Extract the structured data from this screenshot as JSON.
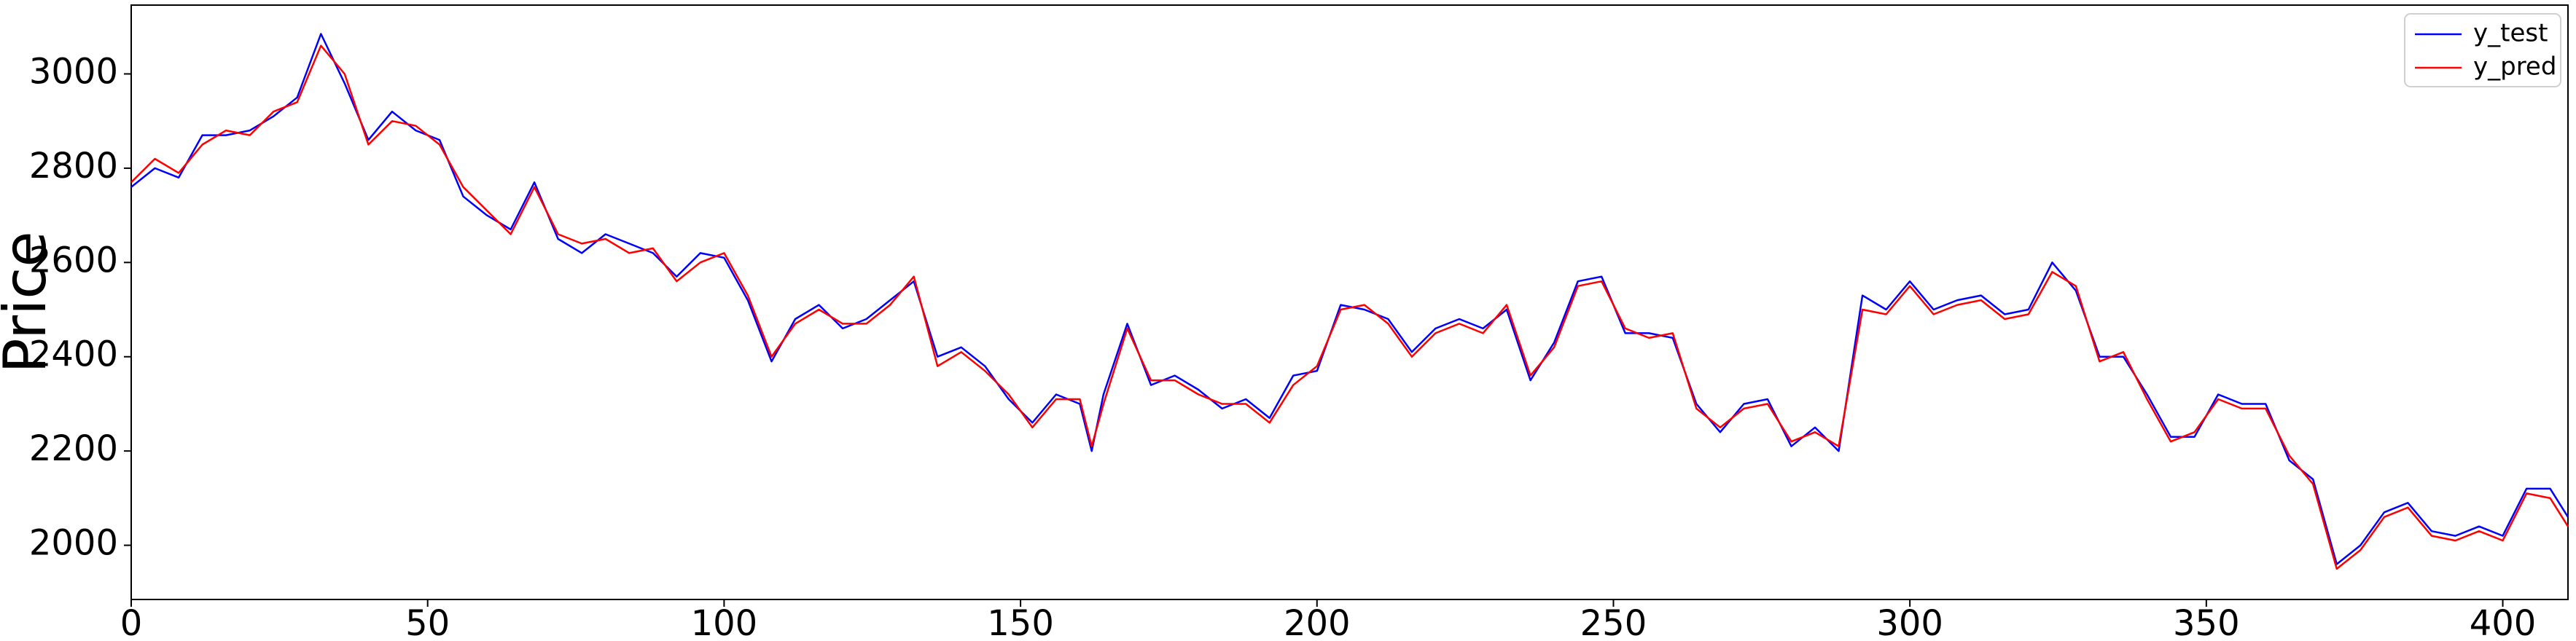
{
  "chart_data": {
    "type": "line",
    "ylabel": "Price",
    "x": [
      0,
      4,
      8,
      12,
      16,
      20,
      24,
      28,
      32,
      36,
      40,
      44,
      48,
      52,
      56,
      60,
      64,
      68,
      72,
      76,
      80,
      84,
      88,
      92,
      96,
      100,
      104,
      108,
      112,
      116,
      120,
      124,
      128,
      132,
      136,
      140,
      144,
      148,
      152,
      156,
      160,
      162,
      164,
      168,
      172,
      176,
      180,
      184,
      188,
      192,
      196,
      200,
      204,
      208,
      212,
      216,
      220,
      224,
      228,
      232,
      236,
      240,
      244,
      248,
      252,
      256,
      260,
      264,
      268,
      272,
      276,
      280,
      284,
      288,
      292,
      296,
      300,
      304,
      308,
      312,
      316,
      320,
      324,
      328,
      332,
      336,
      340,
      344,
      348,
      352,
      356,
      360,
      364,
      368,
      372,
      376,
      380,
      384,
      388,
      392,
      396,
      400,
      404,
      408,
      411
    ],
    "series": [
      {
        "name": "y_test",
        "color": "#0000ff",
        "values": [
          2760,
          2800,
          2780,
          2870,
          2870,
          2880,
          2910,
          2950,
          3085,
          2980,
          2860,
          2920,
          2880,
          2860,
          2740,
          2700,
          2670,
          2770,
          2650,
          2620,
          2660,
          2640,
          2620,
          2570,
          2620,
          2610,
          2520,
          2390,
          2480,
          2510,
          2460,
          2480,
          2520,
          2560,
          2400,
          2420,
          2380,
          2310,
          2260,
          2320,
          2300,
          2200,
          2320,
          2470,
          2340,
          2360,
          2330,
          2290,
          2310,
          2270,
          2360,
          2370,
          2510,
          2500,
          2480,
          2410,
          2460,
          2480,
          2460,
          2500,
          2350,
          2430,
          2560,
          2570,
          2450,
          2450,
          2440,
          2300,
          2240,
          2300,
          2310,
          2210,
          2250,
          2200,
          2530,
          2500,
          2560,
          2500,
          2520,
          2530,
          2490,
          2500,
          2600,
          2540,
          2400,
          2400,
          2320,
          2230,
          2230,
          2320,
          2300,
          2300,
          2180,
          2140,
          1960,
          2000,
          2070,
          2090,
          2030,
          2020,
          2040,
          2020,
          2120,
          2120,
          2060
        ]
      },
      {
        "name": "y_pred",
        "color": "#ff0000",
        "values": [
          2770,
          2820,
          2790,
          2850,
          2880,
          2870,
          2920,
          2940,
          3060,
          3000,
          2850,
          2900,
          2890,
          2850,
          2760,
          2710,
          2660,
          2760,
          2660,
          2640,
          2650,
          2620,
          2630,
          2560,
          2600,
          2620,
          2530,
          2400,
          2470,
          2500,
          2470,
          2470,
          2510,
          2570,
          2380,
          2410,
          2370,
          2320,
          2250,
          2310,
          2310,
          2210,
          2300,
          2460,
          2350,
          2350,
          2320,
          2300,
          2300,
          2260,
          2340,
          2380,
          2500,
          2510,
          2470,
          2400,
          2450,
          2470,
          2450,
          2510,
          2360,
          2420,
          2550,
          2560,
          2460,
          2440,
          2450,
          2290,
          2250,
          2290,
          2300,
          2220,
          2240,
          2210,
          2500,
          2490,
          2550,
          2490,
          2510,
          2520,
          2480,
          2490,
          2580,
          2550,
          2390,
          2410,
          2310,
          2220,
          2240,
          2310,
          2290,
          2290,
          2190,
          2130,
          1950,
          1990,
          2060,
          2080,
          2020,
          2010,
          2030,
          2010,
          2110,
          2100,
          2040
        ]
      }
    ],
    "xlim": [
      0,
      411
    ],
    "ylim": [
      1885,
      3146
    ],
    "xticks": [
      0,
      50,
      100,
      150,
      200,
      250,
      300,
      350,
      400
    ],
    "yticks": [
      2000,
      2200,
      2400,
      2600,
      2800,
      3000
    ],
    "legend": "upper right"
  }
}
